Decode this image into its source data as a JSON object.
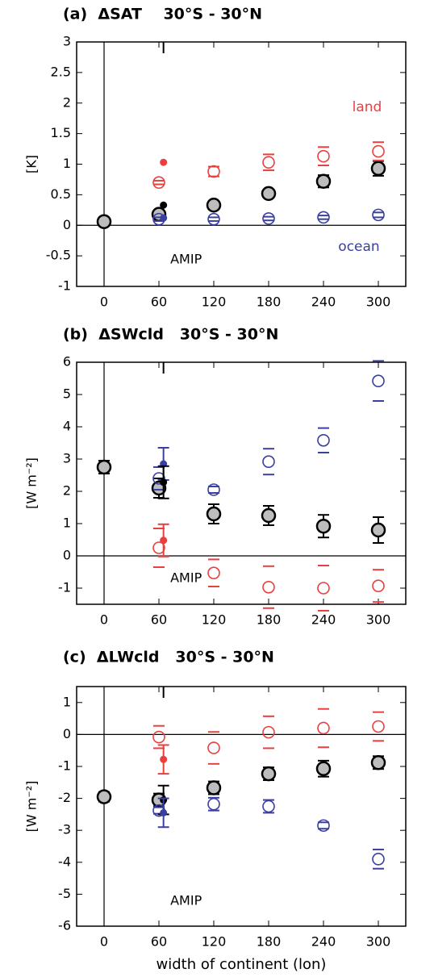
{
  "chart_data": [
    {
      "type": "scatter",
      "title": "(a)  ΔSAT    30°S - 30°N",
      "y_label": "[K]",
      "annotations": [
        "AMIP"
      ],
      "xlim": [
        -30,
        330
      ],
      "xticks": [
        0,
        60,
        120,
        180,
        240,
        300
      ],
      "ylim": [
        -1,
        3
      ],
      "yticks": [
        -1,
        -0.5,
        0,
        0.5,
        1,
        1.5,
        2,
        2.5,
        3
      ],
      "zero_lines": true,
      "series": [
        {
          "color": "#000000",
          "marker": "gray",
          "x": [
            0,
            60,
            120,
            180,
            240,
            300
          ],
          "values": [
            0.06,
            0.18,
            0.33,
            0.52,
            0.72,
            0.93
          ],
          "errors": [
            0.03,
            0.05,
            0.06,
            0.06,
            0.1,
            0.12
          ]
        },
        {
          "name": "land",
          "color": "#e8403f",
          "marker": "open",
          "x": [
            60,
            120,
            180,
            240,
            300
          ],
          "values": [
            0.7,
            0.88,
            1.03,
            1.13,
            1.21
          ],
          "errors": [
            0.03,
            0.08,
            0.13,
            0.15,
            0.15
          ]
        },
        {
          "name": "ocean",
          "color": "#3a3fa0",
          "marker": "open",
          "x": [
            60,
            120,
            180,
            240,
            300
          ],
          "values": [
            0.1,
            0.1,
            0.11,
            0.13,
            0.17
          ],
          "errors": [
            0.03,
            0.03,
            0.03,
            0.03,
            0.04
          ]
        },
        {
          "color": "#000000",
          "marker": "dot",
          "x": [
            65
          ],
          "values": [
            0.33
          ]
        },
        {
          "color": "#e8403f",
          "marker": "dot",
          "x": [
            65
          ],
          "values": [
            1.03
          ]
        },
        {
          "color": "#3a3fa0",
          "marker": "dot",
          "x": [
            65
          ],
          "values": [
            0.12
          ]
        }
      ]
    },
    {
      "type": "scatter",
      "title": "(b)  ΔSWcld   30°S - 30°N",
      "y_label": "[W m⁻²]",
      "annotations": [
        "AMIP"
      ],
      "xlim": [
        -30,
        330
      ],
      "xticks": [
        0,
        60,
        120,
        180,
        240,
        300
      ],
      "ylim": [
        -1.5,
        6
      ],
      "yticks": [
        -1,
        0,
        1,
        2,
        3,
        4,
        5,
        6
      ],
      "zero_lines": true,
      "series": [
        {
          "color": "#000000",
          "marker": "gray",
          "x": [
            0,
            60,
            120,
            180,
            240,
            300
          ],
          "values": [
            2.75,
            2.1,
            1.3,
            1.25,
            0.92,
            0.8
          ],
          "errors": [
            0.2,
            0.3,
            0.3,
            0.3,
            0.35,
            0.4
          ]
        },
        {
          "color": "#3a3fa0",
          "marker": "open",
          "x": [
            60,
            120,
            180,
            240,
            300
          ],
          "values": [
            2.4,
            2.05,
            2.92,
            3.58,
            5.42
          ],
          "errors": [
            0.35,
            0.1,
            0.4,
            0.38,
            0.62
          ]
        },
        {
          "color": "#e8403f",
          "marker": "open",
          "x": [
            60,
            120,
            180,
            240,
            300
          ],
          "values": [
            0.25,
            -0.53,
            -0.97,
            -1.0,
            -0.93
          ],
          "errors": [
            0.6,
            0.42,
            0.65,
            0.7,
            0.5
          ]
        },
        {
          "color": "#3a3fa0",
          "marker": "dot",
          "x": [
            65
          ],
          "values": [
            2.85
          ],
          "errors": [
            0.5
          ]
        },
        {
          "color": "#000000",
          "marker": "dot",
          "x": [
            65
          ],
          "values": [
            2.28
          ],
          "errors": [
            0.5
          ]
        },
        {
          "color": "#e8403f",
          "marker": "dot",
          "x": [
            65
          ],
          "values": [
            0.48
          ],
          "errors": [
            0.5
          ]
        }
      ]
    },
    {
      "type": "scatter",
      "title": "(c)  ΔLWcld   30°S - 30°N",
      "y_label": "[W m⁻²]",
      "x_label": "width of continent (lon)",
      "annotations": [
        "AMIP"
      ],
      "xlim": [
        -30,
        330
      ],
      "xticks": [
        0,
        60,
        120,
        180,
        240,
        300
      ],
      "ylim": [
        -6,
        1.5
      ],
      "yticks": [
        -6,
        -5,
        -4,
        -3,
        -2,
        -1,
        0,
        1
      ],
      "zero_lines": true,
      "series": [
        {
          "color": "#000000",
          "marker": "gray",
          "x": [
            0,
            60,
            120,
            180,
            240,
            300
          ],
          "values": [
            -1.95,
            -2.05,
            -1.67,
            -1.23,
            -1.07,
            -0.88
          ],
          "errors": [
            0.15,
            0.2,
            0.2,
            0.2,
            0.25,
            0.2
          ]
        },
        {
          "color": "#e8403f",
          "marker": "open",
          "x": [
            60,
            120,
            180,
            240,
            300
          ],
          "values": [
            -0.08,
            -0.42,
            0.07,
            0.2,
            0.25
          ],
          "errors": [
            0.35,
            0.5,
            0.5,
            0.6,
            0.45
          ]
        },
        {
          "color": "#3a3fa0",
          "marker": "open",
          "x": [
            60,
            120,
            180,
            240,
            300
          ],
          "values": [
            -2.38,
            -2.18,
            -2.25,
            -2.85,
            -3.9
          ],
          "errors": [
            0.1,
            0.2,
            0.2,
            0.1,
            0.3
          ]
        },
        {
          "color": "#e8403f",
          "marker": "dot",
          "x": [
            65
          ],
          "values": [
            -0.78
          ],
          "errors": [
            0.45
          ]
        },
        {
          "color": "#000000",
          "marker": "dot",
          "x": [
            65
          ],
          "values": [
            -2.05
          ],
          "errors": [
            0.45
          ]
        },
        {
          "color": "#3a3fa0",
          "marker": "dot",
          "x": [
            65
          ],
          "values": [
            -2.45
          ],
          "errors": [
            0.45
          ]
        }
      ]
    }
  ]
}
